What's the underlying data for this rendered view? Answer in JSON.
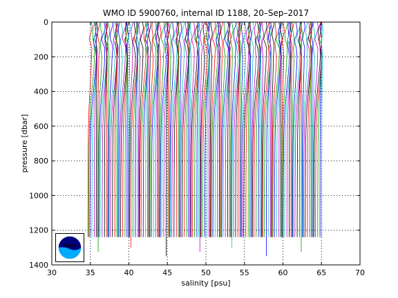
{
  "chart_data": {
    "type": "line",
    "title": "WMO ID 5900760, internal ID 1188, 20–Sep–2017",
    "xlabel": "salinity [psu]",
    "ylabel": "pressure [dbar]",
    "xlim": [
      30,
      70
    ],
    "ylim": [
      1400,
      0
    ],
    "y_reversed": true,
    "grid": "dotted",
    "xticks": [
      "30",
      "35",
      "40",
      "45",
      "50",
      "55",
      "60",
      "65",
      "70"
    ],
    "yticks": [
      "0",
      "200",
      "400",
      "600",
      "800",
      "1000",
      "1200",
      "1400"
    ],
    "series_colors": [
      "#ff0000",
      "#00a000",
      "#0000ff",
      "#00bfbf",
      "#bf00bf",
      "#000000"
    ],
    "profile_template": {
      "pressure": [
        0,
        20,
        40,
        60,
        80,
        100,
        120,
        150,
        200,
        250,
        300,
        350,
        400,
        450,
        500,
        550,
        600,
        700,
        800,
        900,
        1000,
        1100,
        1200,
        1240
      ],
      "salinity_offset": [
        0.45,
        0.45,
        0.4,
        0.35,
        0.3,
        0.2,
        0.3,
        0.45,
        0.5,
        0.45,
        0.35,
        0.25,
        0.15,
        0.05,
        -0.05,
        -0.1,
        -0.15,
        -0.2,
        -0.22,
        -0.24,
        -0.25,
        -0.26,
        -0.27,
        -0.27
      ]
    },
    "profile_count": 160,
    "first_profile_base_salinity": 34.85,
    "profile_spacing": 0.19
  },
  "logo": {
    "name": "NOAA",
    "text": "NOAA",
    "colors": {
      "outer": "#000080",
      "inner": "#00aaff",
      "ring": "#ffffff"
    }
  }
}
